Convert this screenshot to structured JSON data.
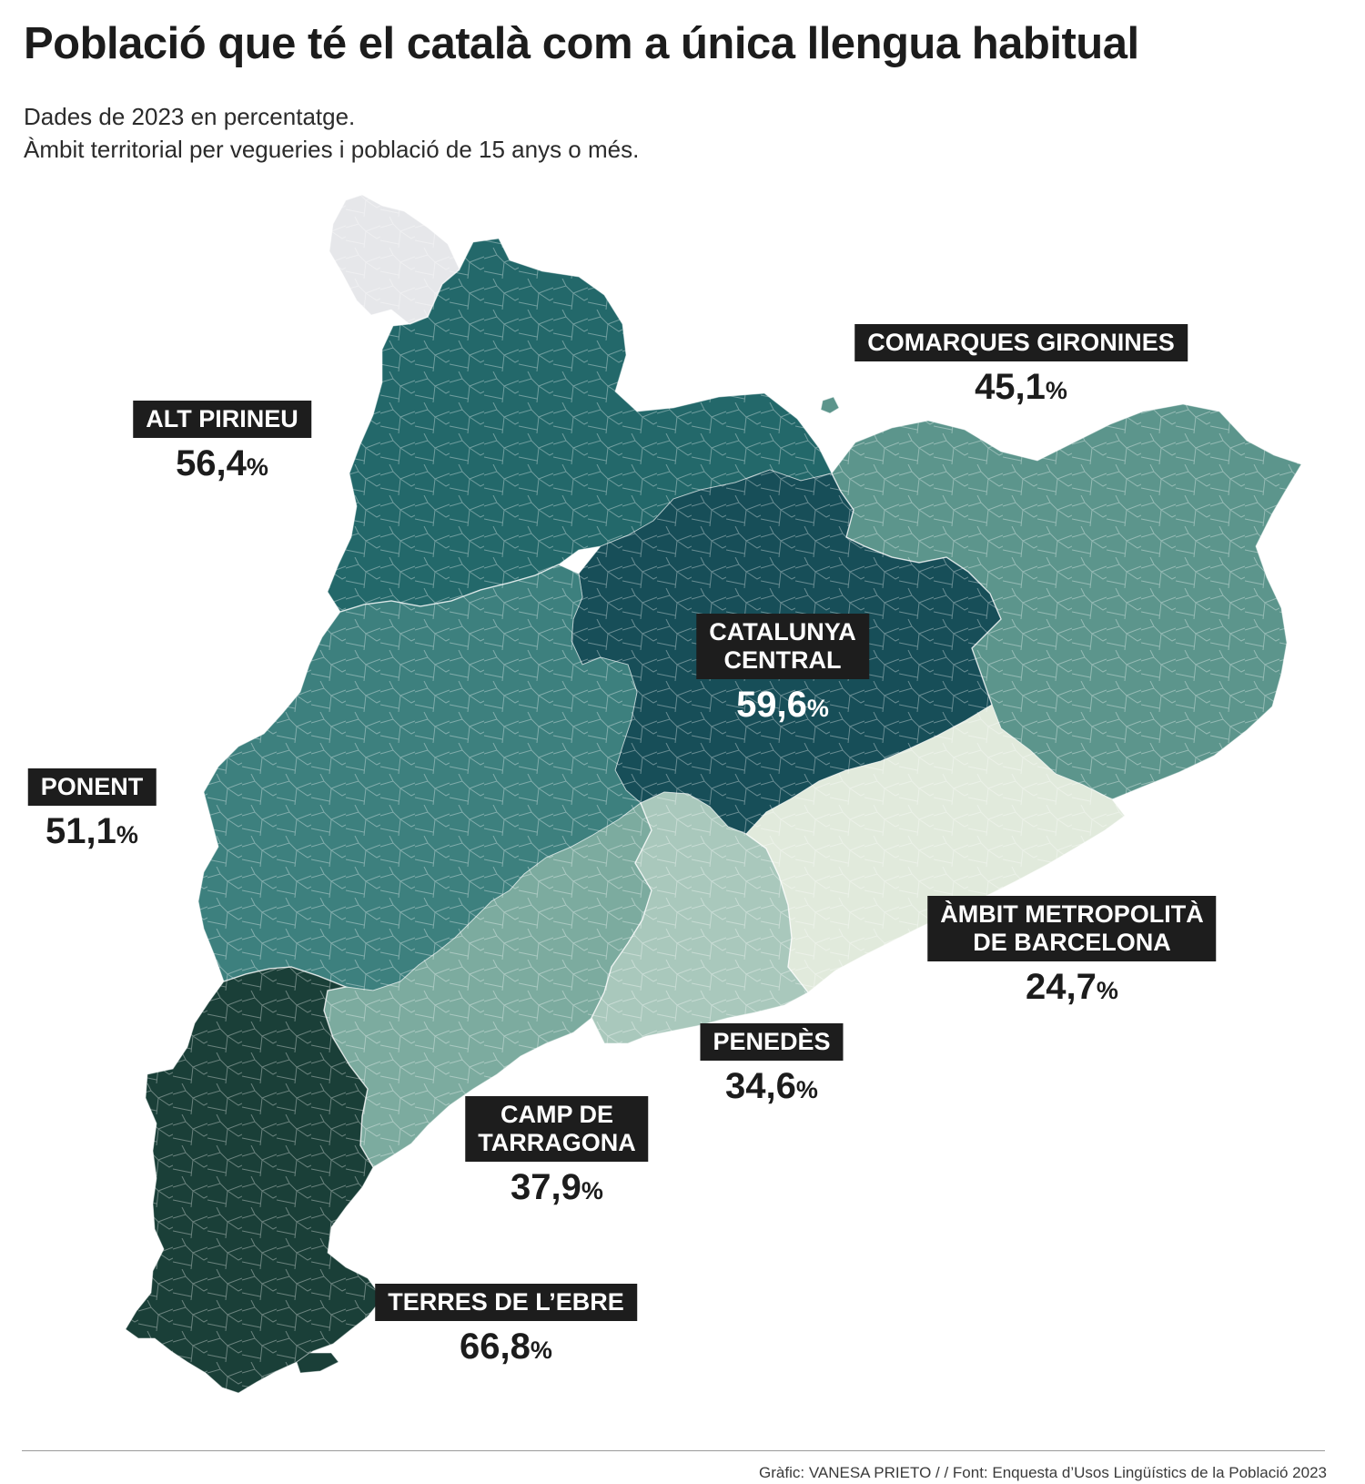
{
  "title": "Població que té el català com a única llengua habitual",
  "subtitle_line1": "Dades de 2023 en percentatge.",
  "subtitle_line2": "Àmbit territorial per vegueries i població de 15 anys o més.",
  "regions": [
    {
      "id": "alt-pirineu",
      "name": "ALT PIRINEU",
      "value": "56,4",
      "unit": "%",
      "color": "#23686a"
    },
    {
      "id": "comarques-gironines",
      "name": "COMARQUES GIRONINES",
      "value": "45,1",
      "unit": "%",
      "color": "#5c958c"
    },
    {
      "id": "catalunya-central",
      "name_line1": "CATALUNYA",
      "name_line2": "CENTRAL",
      "value": "59,6",
      "unit": "%",
      "color": "#174e58"
    },
    {
      "id": "ponent",
      "name": "PONENT",
      "value": "51,1",
      "unit": "%",
      "color": "#3d807e"
    },
    {
      "id": "ambit-metropolita",
      "name_line1": "ÀMBIT METROPOLITÀ",
      "name_line2": "DE BARCELONA",
      "value": "24,7",
      "unit": "%",
      "color": "#e1eadc"
    },
    {
      "id": "penedes",
      "name": "PENEDÈS",
      "value": "34,6",
      "unit": "%",
      "color": "#a9c8bc"
    },
    {
      "id": "camp-de-tarragona",
      "name_line1": "CAMP DE",
      "name_line2": "TARRAGONA",
      "value": "37,9",
      "unit": "%",
      "color": "#7cab9f"
    },
    {
      "id": "terres-de-lebre",
      "name": "TERRES DE L’EBRE",
      "value": "66,8",
      "unit": "%",
      "color": "#1a3f38"
    }
  ],
  "aran_color": "#e6e7ea",
  "credit": "Gràfic: VANESA PRIETO / / Font: Enquesta d’Usos Lingüístics de la Població 2023"
}
